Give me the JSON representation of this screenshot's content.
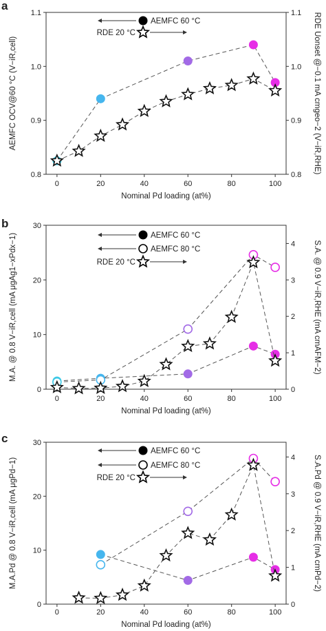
{
  "colors": {
    "cyan": "#3ec9e6",
    "blue": "#46b6ee",
    "purple": "#a26ae6",
    "magenta": "#e62ee6",
    "star": "#111111"
  },
  "chart_data": [
    {
      "type": "scatter",
      "panel": "a",
      "xlabel": "Nominal Pd loading (at%)",
      "ylabel_left": "AEMFC OCV@60 °C (V−iR,cell)",
      "ylabel_right": "RDE Uonset @−0.1 mA cmgeo−2 (V−iR,RHE)",
      "xlim": [
        -5,
        105
      ],
      "ylim_left": [
        0.8,
        1.1
      ],
      "ylim_right": [
        0.8,
        1.1
      ],
      "xticks": [
        0,
        20,
        40,
        60,
        80,
        100
      ],
      "yticks_left": [
        0.8,
        0.9,
        1.0,
        1.1
      ],
      "yticks_right": [
        0.8,
        0.9,
        1.0,
        1.1
      ],
      "tick_labels_left": [
        "0.8",
        "0.9",
        "1.0",
        "1.1"
      ],
      "tick_labels_right": [
        "0.8",
        "0.9",
        "1.0",
        "1.1"
      ],
      "legend": [
        {
          "marker": "filled-circle",
          "label": "AEMFC 60 °C",
          "arrow": "left"
        },
        {
          "marker": "star",
          "label": "RDE 20 °C",
          "arrow": "right"
        }
      ],
      "series": [
        {
          "name": "AEMFC 60 °C",
          "marker": "filled-circle",
          "axis": "left",
          "x": [
            0,
            20,
            60,
            90,
            100
          ],
          "y": [
            0.825,
            0.94,
            1.01,
            1.04,
            0.97
          ],
          "colors": [
            "cyan",
            "blue",
            "purple",
            "magenta",
            "magenta"
          ]
        },
        {
          "name": "RDE 20 °C",
          "marker": "star",
          "axis": "right",
          "x": [
            0,
            10,
            20,
            30,
            40,
            50,
            60,
            70,
            80,
            90,
            100
          ],
          "y": [
            0.825,
            0.843,
            0.871,
            0.892,
            0.917,
            0.935,
            0.948,
            0.959,
            0.965,
            0.977,
            0.955
          ]
        }
      ]
    },
    {
      "type": "scatter",
      "panel": "b",
      "xlabel": "Nominal Pd loading (at%)",
      "ylabel_left": "M.A. @ 0.8 V−iR,cell (mA μgAg1−xPdx−1)",
      "ylabel_right": "S.A. @ 0.9 V−iR,RHE (mA cmAFM−2)",
      "xlim": [
        -5,
        105
      ],
      "ylim_left": [
        0,
        30
      ],
      "ylim_right": [
        0,
        4.5
      ],
      "xticks": [
        0,
        20,
        40,
        60,
        80,
        100
      ],
      "yticks_left": [
        0,
        10,
        20,
        30
      ],
      "yticks_right": [
        0,
        1,
        2,
        3,
        4
      ],
      "tick_labels_left": [
        "0",
        "10",
        "20",
        "30"
      ],
      "tick_labels_right": [
        "0",
        "1",
        "2",
        "3",
        "4"
      ],
      "legend": [
        {
          "marker": "filled-circle",
          "label": "AEMFC 60 °C",
          "arrow": "left"
        },
        {
          "marker": "open-circle",
          "label": "AEMFC 80 °C",
          "arrow": "left"
        },
        {
          "marker": "star",
          "label": "RDE 20 °C",
          "arrow": "right"
        }
      ],
      "series": [
        {
          "name": "AEMFC 60 °C",
          "marker": "filled-circle",
          "axis": "left",
          "x": [
            0,
            20,
            60,
            90,
            100
          ],
          "y": [
            1.5,
            2.0,
            2.8,
            7.9,
            6.4
          ],
          "colors": [
            "cyan",
            "blue",
            "purple",
            "magenta",
            "magenta"
          ]
        },
        {
          "name": "AEMFC 80 °C",
          "marker": "open-circle",
          "axis": "left",
          "x": [
            0,
            20,
            60,
            90,
            100
          ],
          "y": [
            1.3,
            1.7,
            11.0,
            24.6,
            22.3
          ],
          "colors": [
            "cyan",
            "blue",
            "purple",
            "magenta",
            "magenta"
          ]
        },
        {
          "name": "RDE 20 °C",
          "marker": "star",
          "axis": "right",
          "x": [
            0,
            10,
            20,
            30,
            40,
            50,
            60,
            70,
            80,
            90,
            100
          ],
          "y": [
            0.05,
            0.02,
            0.03,
            0.08,
            0.22,
            0.68,
            1.18,
            1.25,
            1.98,
            3.48,
            0.78
          ]
        }
      ]
    },
    {
      "type": "scatter",
      "panel": "c",
      "xlabel": "Nominal Pd loading (at%)",
      "ylabel_left": "M.A.Pd @ 0.8 V−iR,cell (mA μgPd−1)",
      "ylabel_right": "S.A.Pd @ 0.9 V−iR,RHE (mA cmPd−2)",
      "xlim": [
        -5,
        105
      ],
      "ylim_left": [
        0,
        30
      ],
      "ylim_right": [
        0,
        4.4
      ],
      "xticks": [
        0,
        20,
        40,
        60,
        80,
        100
      ],
      "yticks_left": [
        0,
        10,
        20,
        30
      ],
      "yticks_right": [
        0,
        1,
        2,
        3,
        4
      ],
      "tick_labels_left": [
        "0",
        "10",
        "20",
        "30"
      ],
      "tick_labels_right": [
        "0",
        "1",
        "2",
        "3",
        "4"
      ],
      "legend": [
        {
          "marker": "filled-circle",
          "label": "AEMFC 60 °C",
          "arrow": "left"
        },
        {
          "marker": "open-circle",
          "label": "AEMFC 80 °C",
          "arrow": "left"
        },
        {
          "marker": "star",
          "label": "RDE 20 °C",
          "arrow": "right"
        }
      ],
      "series": [
        {
          "name": "AEMFC 60 °C",
          "marker": "filled-circle",
          "axis": "left",
          "x": [
            20,
            60,
            90,
            100
          ],
          "y": [
            9.2,
            4.4,
            8.7,
            6.4
          ],
          "colors": [
            "blue",
            "purple",
            "magenta",
            "magenta"
          ]
        },
        {
          "name": "AEMFC 80 °C",
          "marker": "open-circle",
          "axis": "left",
          "x": [
            20,
            60,
            90,
            100
          ],
          "y": [
            7.3,
            17.2,
            27.0,
            22.7
          ],
          "colors": [
            "blue",
            "purple",
            "magenta",
            "magenta"
          ]
        },
        {
          "name": "RDE 20 °C",
          "marker": "star",
          "axis": "right",
          "x": [
            10,
            20,
            30,
            40,
            50,
            60,
            70,
            80,
            90,
            100
          ],
          "y": [
            0.17,
            0.16,
            0.25,
            0.5,
            1.32,
            1.93,
            1.75,
            2.43,
            3.78,
            0.77
          ]
        }
      ]
    }
  ]
}
